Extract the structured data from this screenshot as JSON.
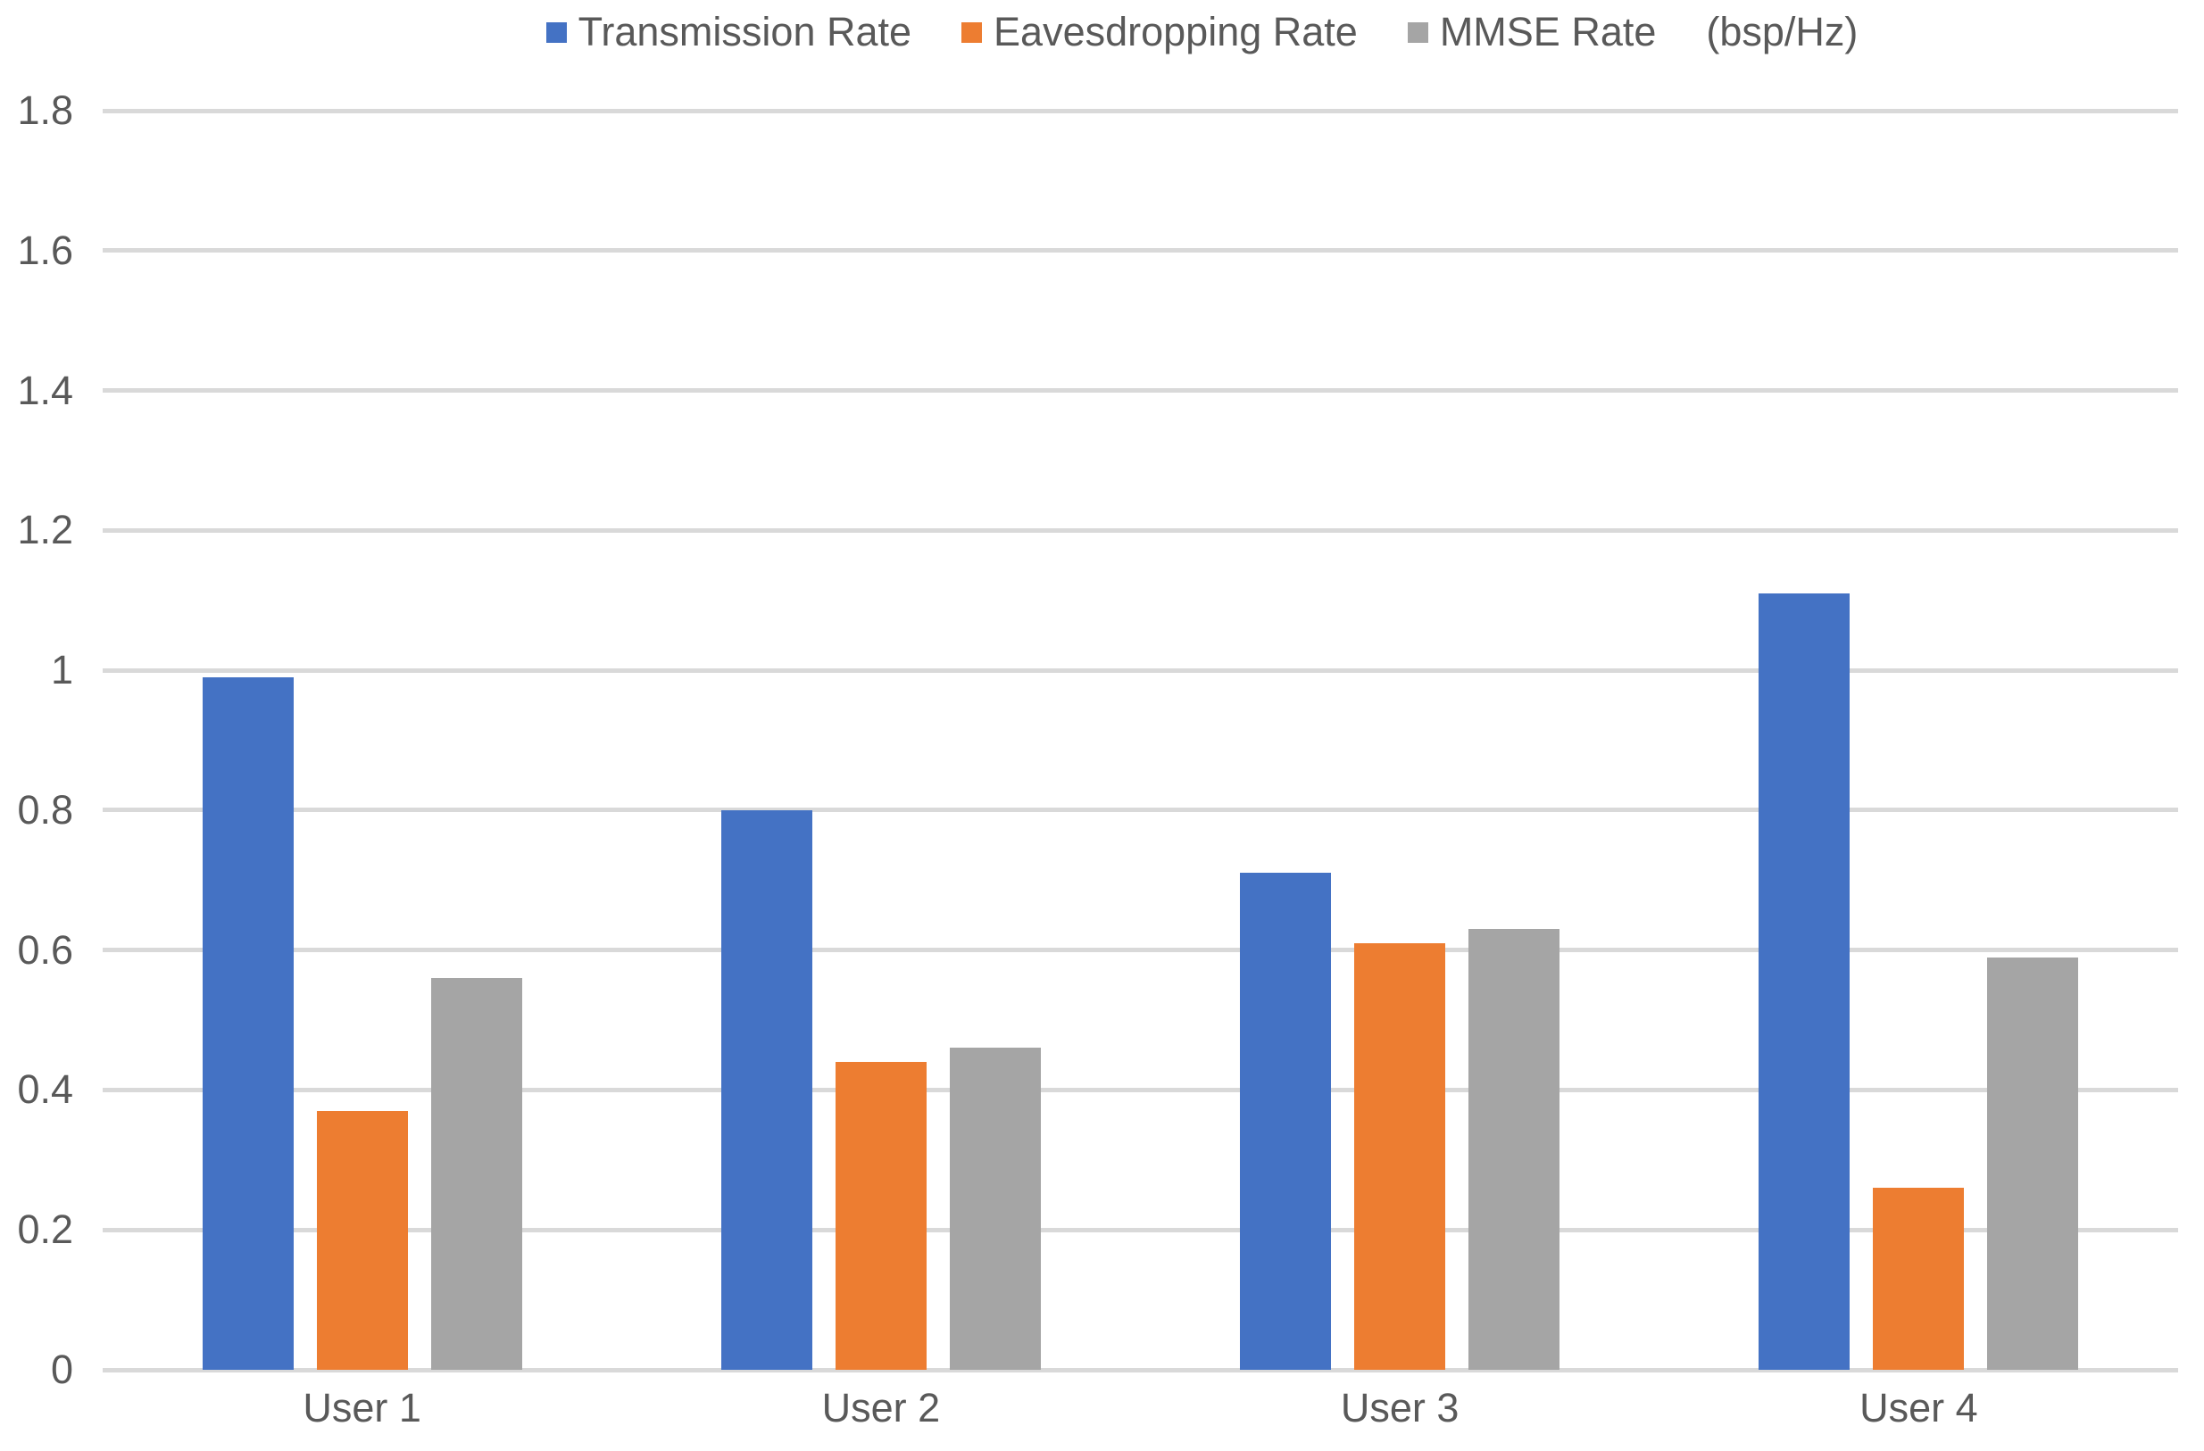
{
  "chart_data": {
    "type": "bar",
    "title": "",
    "categories": [
      "User 1",
      "User 2",
      "User 3",
      "User 4"
    ],
    "series": [
      {
        "name": "Transmission Rate",
        "color": "#4472C4",
        "values": [
          0.99,
          0.8,
          0.71,
          1.11
        ]
      },
      {
        "name": "Eavesdropping Rate",
        "color": "#ED7D31",
        "values": [
          0.37,
          0.44,
          0.61,
          0.26
        ]
      },
      {
        "name": "MMSE Rate",
        "color": "#A5A5A5",
        "values": [
          0.56,
          0.46,
          0.63,
          0.59
        ]
      }
    ],
    "unit_label": "(bsp/Hz)",
    "ylim": [
      0,
      1.8
    ],
    "yticks": [
      0,
      0.2,
      0.4,
      0.6,
      0.8,
      1,
      1.2,
      1.4,
      1.6,
      1.8
    ],
    "ytick_labels": [
      "0",
      "0.2",
      "0.4",
      "0.6",
      "0.8",
      "1",
      "1.2",
      "1.4",
      "1.6",
      "1.8"
    ],
    "xlabel": "",
    "ylabel": "",
    "legend_position": "top",
    "grid": "horizontal",
    "gridline_color": "#D9D9D9",
    "label_color": "#595959"
  }
}
